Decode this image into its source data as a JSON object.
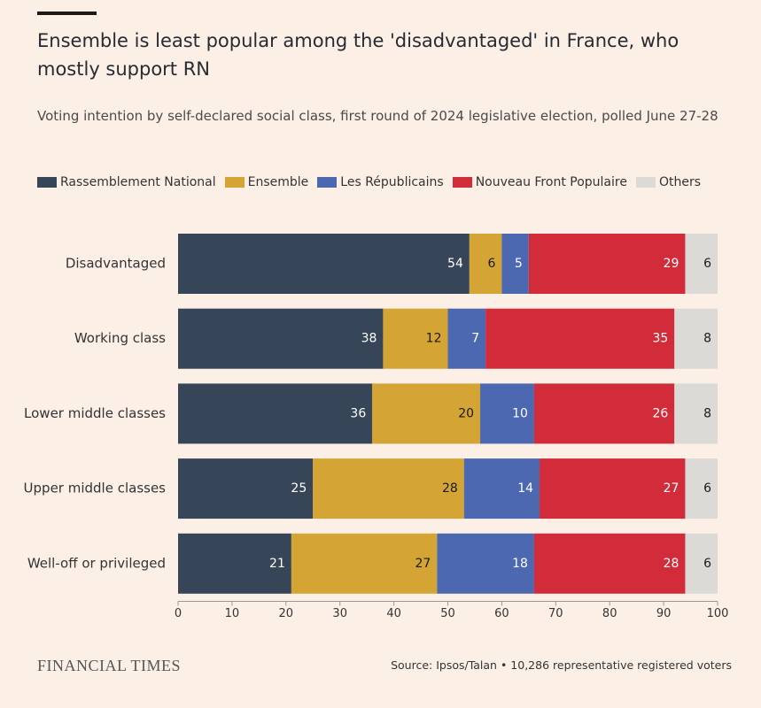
{
  "chart_data": {
    "type": "stacked-bar-horizontal",
    "title": "Ensemble is least popular among the 'disadvantaged' in France, who mostly support RN",
    "subtitle": "Voting intention by self-declared social class, first round of 2024 legislative election, polled June 27-28",
    "categories": [
      "Disadvantaged",
      "Working class",
      "Lower middle classes",
      "Upper middle classes",
      "Well-off or privileged"
    ],
    "series": [
      {
        "name": "Rassemblement National",
        "color": "#374559",
        "values": [
          54,
          38,
          36,
          25,
          21
        ]
      },
      {
        "name": "Ensemble",
        "color": "#d4a535",
        "values": [
          6,
          12,
          20,
          28,
          27
        ]
      },
      {
        "name": "Les Républicains",
        "color": "#4b68b0",
        "values": [
          5,
          7,
          10,
          14,
          18
        ]
      },
      {
        "name": "Nouveau Front Populaire",
        "color": "#d22c3a",
        "values": [
          29,
          35,
          26,
          27,
          28
        ]
      },
      {
        "name": "Others",
        "color": "#dcdad6",
        "values": [
          6,
          8,
          8,
          6,
          6
        ]
      }
    ],
    "xlim": [
      0,
      100
    ],
    "xticks": [
      0,
      10,
      20,
      30,
      40,
      50,
      60,
      70,
      80,
      90,
      100
    ],
    "grid": false,
    "publisher": "FINANCIAL TIMES",
    "source": "Source: Ipsos/Talan • 10,286 representative registered voters"
  }
}
